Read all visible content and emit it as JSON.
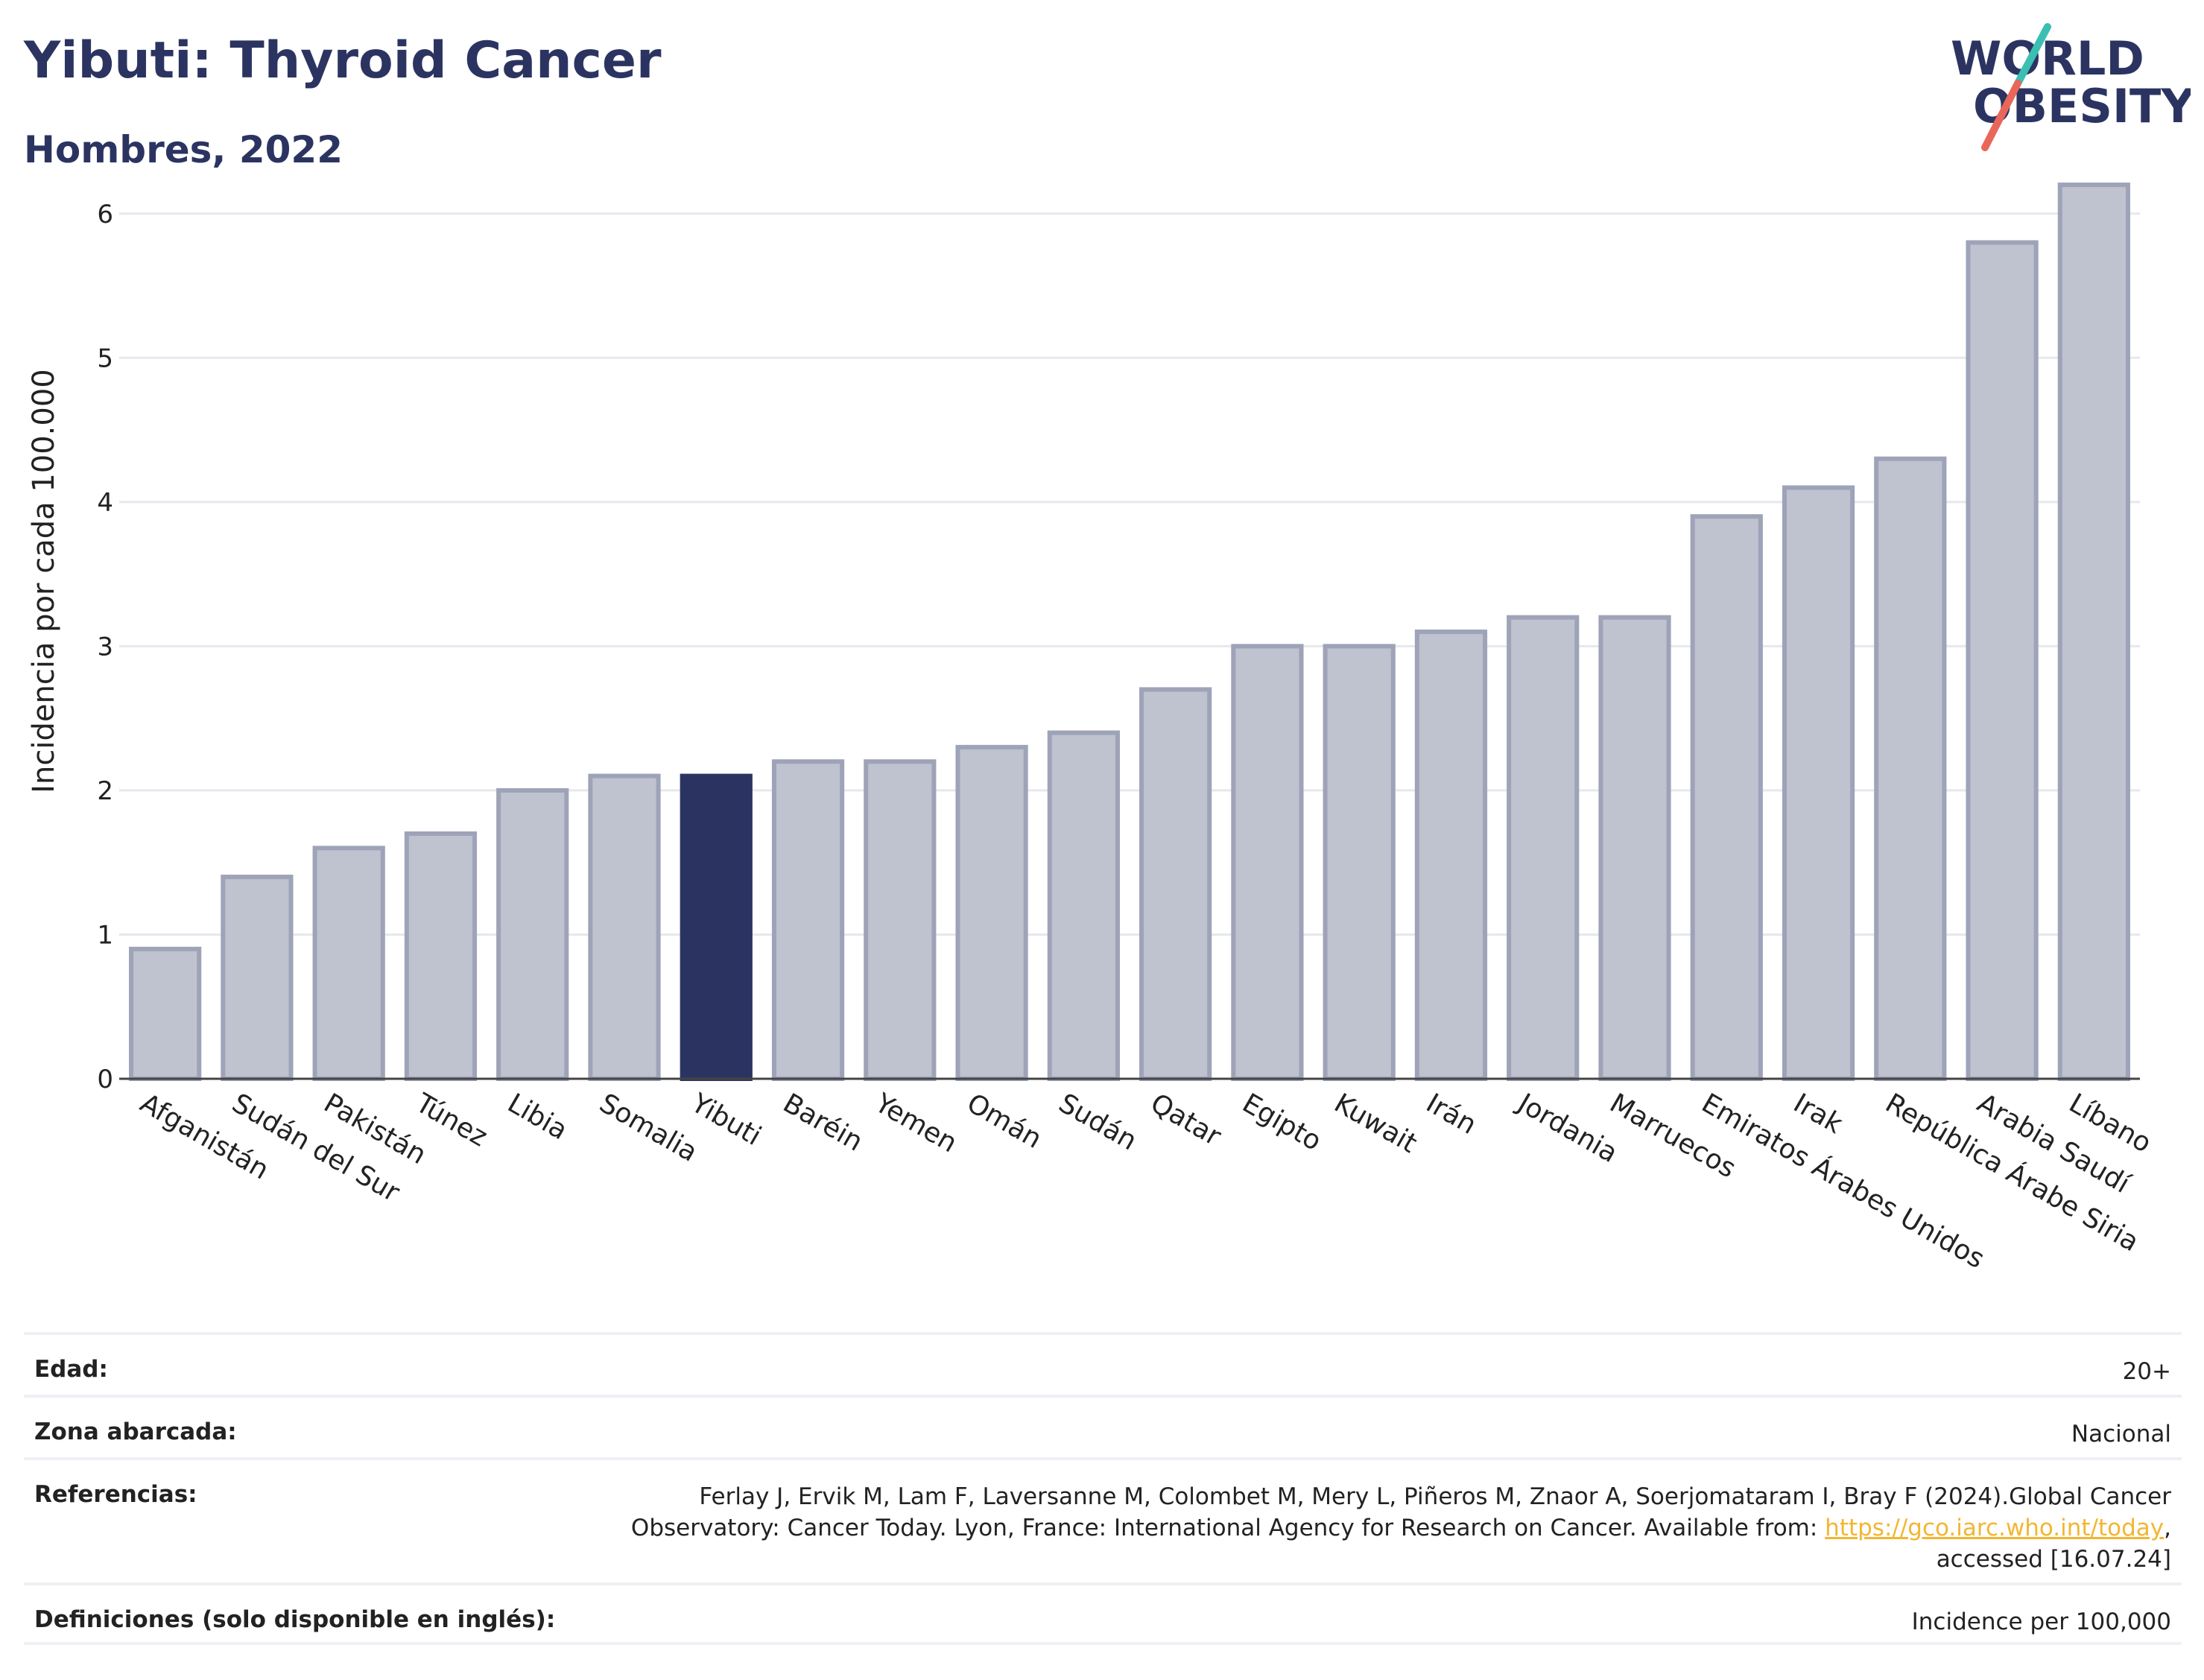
{
  "header": {
    "title": "Yibuti: Thyroid Cancer",
    "subtitle": "Hombres, 2022"
  },
  "logo": {
    "line1": "WORLD",
    "line2": "OBESITY"
  },
  "colors": {
    "highlight_bar": "#2b3461",
    "bar_fill": "#bfc2cf",
    "bar_stroke": "#9ea3b8",
    "title": "#2b3461",
    "link": "#f2b632",
    "logo_teal": "#3bbfb3",
    "logo_coral": "#e8675a"
  },
  "chart_data": {
    "type": "bar",
    "highlight": "Yibuti",
    "ylabel": "Incidencia por cada 100.000",
    "ylim": [
      0,
      6.5
    ],
    "yticks": [
      0,
      1,
      2,
      3,
      4,
      5,
      6
    ],
    "grid": true,
    "categories": [
      "Afganistán",
      "Sudán del Sur",
      "Pakistán",
      "Túnez",
      "Libia",
      "Somalia",
      "Yibuti",
      "Baréin",
      "Yemen",
      "Omán",
      "Sudán",
      "Qatar",
      "Egipto",
      "Kuwait",
      "Irán",
      "Jordania",
      "Marruecos",
      "Emiratos Árabes Unidos",
      "Irak",
      "República Árabe Siria",
      "Arabia Saudí",
      "Líbano"
    ],
    "values": [
      0.9,
      1.4,
      1.6,
      1.7,
      2.0,
      2.1,
      2.1,
      2.2,
      2.2,
      2.3,
      2.4,
      2.7,
      3.0,
      3.0,
      3.1,
      3.2,
      3.2,
      3.9,
      4.1,
      4.3,
      5.8,
      6.2
    ]
  },
  "meta": {
    "age_label": "Edad:",
    "age_value": "20+",
    "area_label": "Zona abarcada:",
    "area_value": "Nacional",
    "refs_label": "Referencias:",
    "refs_text_1": "Ferlay J, Ervik M, Lam F, Laversanne M, Colombet M, Mery L, Piñeros M, Znaor A, Soerjomataram I, Bray F (2024).Global Cancer Observatory: Cancer Today. Lyon, France: International Agency for Research on Cancer. Available from: ",
    "refs_link": "https://gco.iarc.who.int/today",
    "refs_text_2": ", accessed [16.07.24]",
    "defs_label": "Definiciones (solo disponible en inglés):",
    "defs_value": "Incidence per 100,000"
  }
}
